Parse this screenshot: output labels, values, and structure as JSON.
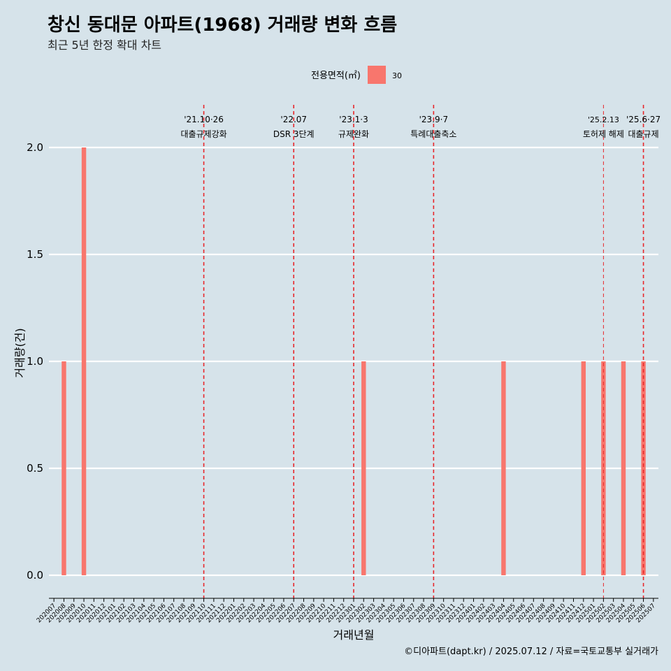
{
  "title": "창신 동대문 아파트(1968) 거래량 변화 흐름",
  "subtitle": "최근 5년 한정 확대 차트",
  "caption": "©디아파트(dapt.kr) / 2025.07.12 / 자료=국토교통부 실거래가",
  "legend": {
    "title": "전용면적(㎡)",
    "items": [
      {
        "label": "30",
        "color": "#f8766d"
      }
    ]
  },
  "chart_data": {
    "type": "bar",
    "xlabel": "거래년월",
    "ylabel": "거래량(건)",
    "ylim": [
      0,
      2.0
    ],
    "yticks": [
      "0.0",
      "0.5",
      "1.0",
      "1.5",
      "2.0"
    ],
    "grid": true,
    "legend_position": "top",
    "categories": [
      "202007",
      "202008",
      "202009",
      "202010",
      "202011",
      "202012",
      "202101",
      "202102",
      "202103",
      "202104",
      "202105",
      "202106",
      "202107",
      "202108",
      "202109",
      "202110",
      "202111",
      "202112",
      "202201",
      "202202",
      "202203",
      "202204",
      "202205",
      "202206",
      "202207",
      "202208",
      "202209",
      "202210",
      "202211",
      "202212",
      "202301",
      "202302",
      "202303",
      "202304",
      "202305",
      "202306",
      "202307",
      "202308",
      "202309",
      "202310",
      "202311",
      "202312",
      "202401",
      "202402",
      "202403",
      "202404",
      "202405",
      "202406",
      "202407",
      "202408",
      "202409",
      "202410",
      "202411",
      "202412",
      "202501",
      "202502",
      "202503",
      "202504",
      "202505",
      "202506",
      "202507"
    ],
    "series": [
      {
        "name": "30",
        "color": "#f8766d",
        "values": [
          0,
          1,
          0,
          2,
          0,
          0,
          0,
          0,
          0,
          0,
          0,
          0,
          0,
          0,
          0,
          0,
          0,
          0,
          0,
          0,
          0,
          0,
          0,
          0,
          0,
          0,
          0,
          0,
          0,
          0,
          0,
          1,
          0,
          0,
          0,
          0,
          0,
          0,
          0,
          0,
          0,
          0,
          0,
          0,
          0,
          1,
          0,
          0,
          0,
          0,
          0,
          0,
          0,
          1,
          0,
          1,
          0,
          1,
          0,
          1,
          0
        ]
      }
    ],
    "annotations": [
      {
        "date": "'21.10·26",
        "label": "대출규제강화",
        "category": "202110"
      },
      {
        "date": "'22.07",
        "label": "DSR 3단계",
        "category": "202207"
      },
      {
        "date": "'23.1·3",
        "label": "규제완화",
        "category": "202301"
      },
      {
        "date": "'23.9·7",
        "label": "특례대출축소",
        "category": "202309"
      },
      {
        "date": "'25.2.13",
        "label": "토허제 해제",
        "category": "202502"
      },
      {
        "date": "'25.6·27",
        "label": "대출규제",
        "category": "202506"
      }
    ]
  }
}
